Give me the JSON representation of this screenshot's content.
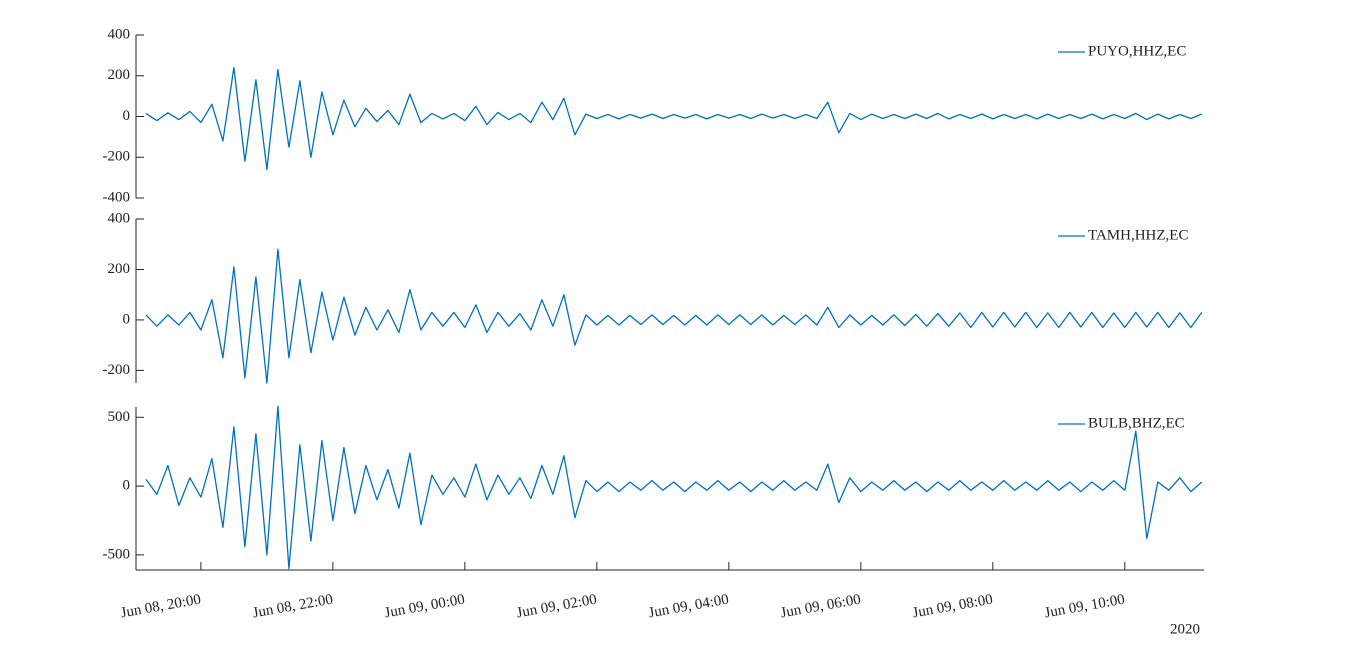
{
  "chart_data": [
    {
      "type": "line",
      "x": [
        "2020-06-08 19:10",
        "2020-06-08 19:20",
        "2020-06-08 19:30",
        "2020-06-08 19:40",
        "2020-06-08 19:50",
        "2020-06-08 20:00",
        "2020-06-08 20:10",
        "2020-06-08 20:20",
        "2020-06-08 20:30",
        "2020-06-08 20:40",
        "2020-06-08 20:50",
        "2020-06-08 21:00",
        "2020-06-08 21:10",
        "2020-06-08 21:20",
        "2020-06-08 21:30",
        "2020-06-08 21:40",
        "2020-06-08 21:50",
        "2020-06-08 22:00",
        "2020-06-08 22:10",
        "2020-06-08 22:20",
        "2020-06-08 22:30",
        "2020-06-08 22:40",
        "2020-06-08 22:50",
        "2020-06-08 23:00",
        "2020-06-08 23:10",
        "2020-06-08 23:20",
        "2020-06-08 23:30",
        "2020-06-08 23:40",
        "2020-06-08 23:50",
        "2020-06-09 00:00",
        "2020-06-09 00:10",
        "2020-06-09 00:20",
        "2020-06-09 00:30",
        "2020-06-09 00:40",
        "2020-06-09 00:50",
        "2020-06-09 01:00",
        "2020-06-09 01:10",
        "2020-06-09 01:20",
        "2020-06-09 01:30",
        "2020-06-09 01:40",
        "2020-06-09 01:50",
        "2020-06-09 02:00",
        "2020-06-09 02:10",
        "2020-06-09 02:20",
        "2020-06-09 02:30",
        "2020-06-09 02:40",
        "2020-06-09 02:50",
        "2020-06-09 03:00",
        "2020-06-09 03:10",
        "2020-06-09 03:20",
        "2020-06-09 03:30",
        "2020-06-09 03:40",
        "2020-06-09 03:50",
        "2020-06-09 04:00",
        "2020-06-09 04:10",
        "2020-06-09 04:20",
        "2020-06-09 04:30",
        "2020-06-09 04:40",
        "2020-06-09 04:50",
        "2020-06-09 05:00",
        "2020-06-09 05:10",
        "2020-06-09 05:20",
        "2020-06-09 05:30",
        "2020-06-09 05:40",
        "2020-06-09 05:50",
        "2020-06-09 06:00",
        "2020-06-09 06:10",
        "2020-06-09 06:20",
        "2020-06-09 06:30",
        "2020-06-09 06:40",
        "2020-06-09 06:50",
        "2020-06-09 07:00",
        "2020-06-09 07:10",
        "2020-06-09 07:20",
        "2020-06-09 07:30",
        "2020-06-09 07:40",
        "2020-06-09 07:50",
        "2020-06-09 08:00",
        "2020-06-09 08:10",
        "2020-06-09 08:20",
        "2020-06-09 08:30",
        "2020-06-09 08:40",
        "2020-06-09 08:50",
        "2020-06-09 09:00",
        "2020-06-09 09:10",
        "2020-06-09 09:20",
        "2020-06-09 09:30",
        "2020-06-09 09:40",
        "2020-06-09 09:50",
        "2020-06-09 10:00",
        "2020-06-09 10:10",
        "2020-06-09 10:20",
        "2020-06-09 10:30",
        "2020-06-09 10:40",
        "2020-06-09 10:50",
        "2020-06-09 11:00",
        "2020-06-09 11:10"
      ],
      "xlim": [
        "2020-06-08 19:01",
        "2020-06-09 11:12"
      ],
      "ylim": [
        -400,
        400
      ],
      "yticks": [
        -400,
        -200,
        0,
        200,
        400
      ],
      "series": [
        {
          "name": "PUYO,HHZ,EC",
          "color": "#0072bd",
          "values": [
            15,
            -20,
            18,
            -15,
            25,
            -30,
            60,
            -120,
            240,
            -220,
            180,
            -260,
            230,
            -150,
            175,
            -200,
            120,
            -90,
            80,
            -50,
            40,
            -25,
            30,
            -40,
            110,
            -30,
            15,
            -12,
            15,
            -20,
            50,
            -40,
            20,
            -15,
            15,
            -30,
            70,
            -15,
            90,
            -90,
            12,
            -10,
            10,
            -12,
            10,
            -8,
            12,
            -10,
            10,
            -8,
            10,
            -12,
            10,
            -8,
            10,
            -10,
            12,
            -8,
            10,
            -10,
            10,
            -10,
            70,
            -80,
            15,
            -15,
            12,
            -10,
            10,
            -10,
            12,
            -10,
            15,
            -12,
            10,
            -10,
            12,
            -12,
            10,
            -10,
            10,
            -12,
            12,
            -10,
            10,
            -10,
            12,
            -12,
            10,
            -10,
            15,
            -15,
            12,
            -12,
            10,
            -10,
            12
          ]
        }
      ]
    },
    {
      "type": "line",
      "x": [
        "2020-06-08 19:10",
        "2020-06-08 19:20",
        "2020-06-08 19:30",
        "2020-06-08 19:40",
        "2020-06-08 19:50",
        "2020-06-08 20:00",
        "2020-06-08 20:10",
        "2020-06-08 20:20",
        "2020-06-08 20:30",
        "2020-06-08 20:40",
        "2020-06-08 20:50",
        "2020-06-08 21:00",
        "2020-06-08 21:10",
        "2020-06-08 21:20",
        "2020-06-08 21:30",
        "2020-06-08 21:40",
        "2020-06-08 21:50",
        "2020-06-08 22:00",
        "2020-06-08 22:10",
        "2020-06-08 22:20",
        "2020-06-08 22:30",
        "2020-06-08 22:40",
        "2020-06-08 22:50",
        "2020-06-08 23:00",
        "2020-06-08 23:10",
        "2020-06-08 23:20",
        "2020-06-08 23:30",
        "2020-06-08 23:40",
        "2020-06-08 23:50",
        "2020-06-09 00:00",
        "2020-06-09 00:10",
        "2020-06-09 00:20",
        "2020-06-09 00:30",
        "2020-06-09 00:40",
        "2020-06-09 00:50",
        "2020-06-09 01:00",
        "2020-06-09 01:10",
        "2020-06-09 01:20",
        "2020-06-09 01:30",
        "2020-06-09 01:40",
        "2020-06-09 01:50",
        "2020-06-09 02:00",
        "2020-06-09 02:10",
        "2020-06-09 02:20",
        "2020-06-09 02:30",
        "2020-06-09 02:40",
        "2020-06-09 02:50",
        "2020-06-09 03:00",
        "2020-06-09 03:10",
        "2020-06-09 03:20",
        "2020-06-09 03:30",
        "2020-06-09 03:40",
        "2020-06-09 03:50",
        "2020-06-09 04:00",
        "2020-06-09 04:10",
        "2020-06-09 04:20",
        "2020-06-09 04:30",
        "2020-06-09 04:40",
        "2020-06-09 04:50",
        "2020-06-09 05:00",
        "2020-06-09 05:10",
        "2020-06-09 05:20",
        "2020-06-09 05:30",
        "2020-06-09 05:40",
        "2020-06-09 05:50",
        "2020-06-09 06:00",
        "2020-06-09 06:10",
        "2020-06-09 06:20",
        "2020-06-09 06:30",
        "2020-06-09 06:40",
        "2020-06-09 06:50",
        "2020-06-09 07:00",
        "2020-06-09 07:10",
        "2020-06-09 07:20",
        "2020-06-09 07:30",
        "2020-06-09 07:40",
        "2020-06-09 07:50",
        "2020-06-09 08:00",
        "2020-06-09 08:10",
        "2020-06-09 08:20",
        "2020-06-09 08:30",
        "2020-06-09 08:40",
        "2020-06-09 08:50",
        "2020-06-09 09:00",
        "2020-06-09 09:10",
        "2020-06-09 09:20",
        "2020-06-09 09:30",
        "2020-06-09 09:40",
        "2020-06-09 09:50",
        "2020-06-09 10:00",
        "2020-06-09 10:10",
        "2020-06-09 10:20",
        "2020-06-09 10:30",
        "2020-06-09 10:40",
        "2020-06-09 10:50",
        "2020-06-09 11:00",
        "2020-06-09 11:10"
      ],
      "xlim": [
        "2020-06-08 19:01",
        "2020-06-09 11:12"
      ],
      "ylim": [
        -250,
        400
      ],
      "yticks": [
        -200,
        0,
        200,
        400
      ],
      "series": [
        {
          "name": "TAMH,HHZ,EC",
          "color": "#0072bd",
          "values": [
            20,
            -25,
            20,
            -20,
            30,
            -40,
            80,
            -150,
            210,
            -230,
            170,
            -250,
            280,
            -150,
            160,
            -130,
            110,
            -80,
            90,
            -60,
            50,
            -40,
            40,
            -50,
            120,
            -40,
            30,
            -25,
            30,
            -30,
            60,
            -50,
            30,
            -25,
            25,
            -40,
            80,
            -25,
            100,
            -100,
            20,
            -20,
            18,
            -20,
            18,
            -18,
            20,
            -18,
            18,
            -20,
            18,
            -20,
            20,
            -18,
            20,
            -18,
            20,
            -20,
            18,
            -18,
            20,
            -20,
            50,
            -30,
            20,
            -20,
            18,
            -20,
            20,
            -22,
            22,
            -25,
            25,
            -25,
            28,
            -30,
            30,
            -28,
            30,
            -28,
            30,
            -30,
            28,
            -30,
            30,
            -28,
            30,
            -30,
            28,
            -30,
            30,
            -28,
            30,
            -30,
            28,
            -30,
            30
          ]
        }
      ]
    },
    {
      "type": "line",
      "x": [
        "2020-06-08 19:10",
        "2020-06-08 19:20",
        "2020-06-08 19:30",
        "2020-06-08 19:40",
        "2020-06-08 19:50",
        "2020-06-08 20:00",
        "2020-06-08 20:10",
        "2020-06-08 20:20",
        "2020-06-08 20:30",
        "2020-06-08 20:40",
        "2020-06-08 20:50",
        "2020-06-08 21:00",
        "2020-06-08 21:10",
        "2020-06-08 21:20",
        "2020-06-08 21:30",
        "2020-06-08 21:40",
        "2020-06-08 21:50",
        "2020-06-08 22:00",
        "2020-06-08 22:10",
        "2020-06-08 22:20",
        "2020-06-08 22:30",
        "2020-06-08 22:40",
        "2020-06-08 22:50",
        "2020-06-08 23:00",
        "2020-06-08 23:10",
        "2020-06-08 23:20",
        "2020-06-08 23:30",
        "2020-06-08 23:40",
        "2020-06-08 23:50",
        "2020-06-09 00:00",
        "2020-06-09 00:10",
        "2020-06-09 00:20",
        "2020-06-09 00:30",
        "2020-06-09 00:40",
        "2020-06-09 00:50",
        "2020-06-09 01:00",
        "2020-06-09 01:10",
        "2020-06-09 01:20",
        "2020-06-09 01:30",
        "2020-06-09 01:40",
        "2020-06-09 01:50",
        "2020-06-09 02:00",
        "2020-06-09 02:10",
        "2020-06-09 02:20",
        "2020-06-09 02:30",
        "2020-06-09 02:40",
        "2020-06-09 02:50",
        "2020-06-09 03:00",
        "2020-06-09 03:10",
        "2020-06-09 03:20",
        "2020-06-09 03:30",
        "2020-06-09 03:40",
        "2020-06-09 03:50",
        "2020-06-09 04:00",
        "2020-06-09 04:10",
        "2020-06-09 04:20",
        "2020-06-09 04:30",
        "2020-06-09 04:40",
        "2020-06-09 04:50",
        "2020-06-09 05:00",
        "2020-06-09 05:10",
        "2020-06-09 05:20",
        "2020-06-09 05:30",
        "2020-06-09 05:40",
        "2020-06-09 05:50",
        "2020-06-09 06:00",
        "2020-06-09 06:10",
        "2020-06-09 06:20",
        "2020-06-09 06:30",
        "2020-06-09 06:40",
        "2020-06-09 06:50",
        "2020-06-09 07:00",
        "2020-06-09 07:10",
        "2020-06-09 07:20",
        "2020-06-09 07:30",
        "2020-06-09 07:40",
        "2020-06-09 07:50",
        "2020-06-09 08:00",
        "2020-06-09 08:10",
        "2020-06-09 08:20",
        "2020-06-09 08:30",
        "2020-06-09 08:40",
        "2020-06-09 08:50",
        "2020-06-09 09:00",
        "2020-06-09 09:10",
        "2020-06-09 09:20",
        "2020-06-09 09:30",
        "2020-06-09 09:40",
        "2020-06-09 09:50",
        "2020-06-09 10:00",
        "2020-06-09 10:10",
        "2020-06-09 10:20",
        "2020-06-09 10:30",
        "2020-06-09 10:40",
        "2020-06-09 10:50",
        "2020-06-09 11:00",
        "2020-06-09 11:10"
      ],
      "xlim": [
        "2020-06-08 19:01",
        "2020-06-09 11:12"
      ],
      "xticks": [
        {
          "value": "2020-06-08 20:00",
          "label": "Jun 08, 20:00"
        },
        {
          "value": "2020-06-08 22:00",
          "label": "Jun 08, 22:00"
        },
        {
          "value": "2020-06-09 00:00",
          "label": "Jun 09, 00:00"
        },
        {
          "value": "2020-06-09 02:00",
          "label": "Jun 09, 02:00"
        },
        {
          "value": "2020-06-09 04:00",
          "label": "Jun 09, 04:00"
        },
        {
          "value": "2020-06-09 06:00",
          "label": "Jun 09, 06:00"
        },
        {
          "value": "2020-06-09 08:00",
          "label": "Jun 09, 08:00"
        },
        {
          "value": "2020-06-09 10:00",
          "label": "Jun 09, 10:00"
        }
      ],
      "x_secondary_label": "2020",
      "ylim": [
        -610,
        575
      ],
      "yticks": [
        -500,
        0,
        500
      ],
      "series": [
        {
          "name": "BULB,BHZ,EC",
          "color": "#0072bd",
          "values": [
            50,
            -60,
            150,
            -140,
            60,
            -80,
            200,
            -300,
            430,
            -440,
            380,
            -500,
            580,
            -600,
            300,
            -400,
            330,
            -250,
            280,
            -200,
            150,
            -100,
            120,
            -160,
            240,
            -280,
            80,
            -60,
            60,
            -80,
            160,
            -100,
            80,
            -60,
            60,
            -90,
            150,
            -60,
            220,
            -230,
            40,
            -40,
            30,
            -40,
            30,
            -30,
            40,
            -30,
            30,
            -40,
            30,
            -30,
            40,
            -30,
            30,
            -40,
            30,
            -30,
            40,
            -30,
            30,
            -30,
            160,
            -120,
            60,
            -40,
            30,
            -30,
            40,
            -30,
            30,
            -40,
            30,
            -30,
            40,
            -30,
            30,
            -30,
            40,
            -30,
            30,
            -30,
            40,
            -30,
            30,
            -40,
            30,
            -30,
            40,
            -30,
            400,
            -380,
            30,
            -30,
            60,
            -40,
            30
          ]
        }
      ]
    }
  ]
}
